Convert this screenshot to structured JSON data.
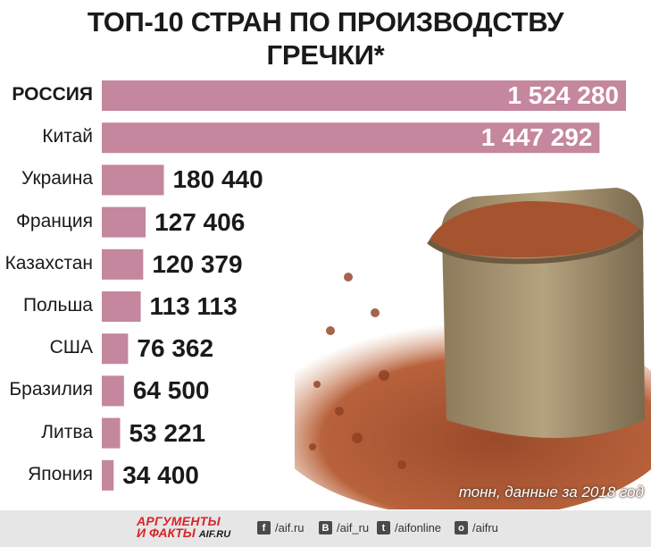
{
  "title_line1": "ТОП-10 СТРАН ПО ПРОИЗВОДСТВУ",
  "title_line2": "ГРЕЧКИ*",
  "note": "тонн, данные за 2018 год",
  "colors": {
    "bar": "#c4879d",
    "footer": "#e6e6e6",
    "logo_red": "#d8232a"
  },
  "chart_data": {
    "type": "bar",
    "orientation": "horizontal",
    "title": "ТОП-10 СТРАН ПО ПРОИЗВОДСТВУ ГРЕЧКИ*",
    "categories": [
      "РОССИЯ",
      "Китай",
      "Украина",
      "Франция",
      "Казахстан",
      "Польша",
      "США",
      "Бразилия",
      "Литва",
      "Япония"
    ],
    "values": [
      1524280,
      1447292,
      180440,
      127406,
      120379,
      113113,
      76362,
      64500,
      53221,
      34400
    ],
    "value_labels": [
      "1 524 280",
      "1 447 292",
      "180 440",
      "127 406",
      "120 379",
      "113 113",
      "76 362",
      "64 500",
      "53 221",
      "34 400"
    ],
    "unit": "тонн",
    "highlight": "РОССИЯ"
  },
  "footer": {
    "logo_line1": "АРГУМЕНТЫ",
    "logo_line2": "И ФАКТЫ",
    "logo_domain": "AIF.RU",
    "social": [
      {
        "icon": "facebook-icon",
        "glyph": "f",
        "label": "/aif.ru"
      },
      {
        "icon": "vk-icon",
        "glyph": "B",
        "label": "/aif_ru"
      },
      {
        "icon": "twitter-icon",
        "glyph": "t",
        "label": "/aifonline"
      },
      {
        "icon": "odnoklassniki-icon",
        "glyph": "o",
        "label": "/aifru"
      }
    ]
  }
}
